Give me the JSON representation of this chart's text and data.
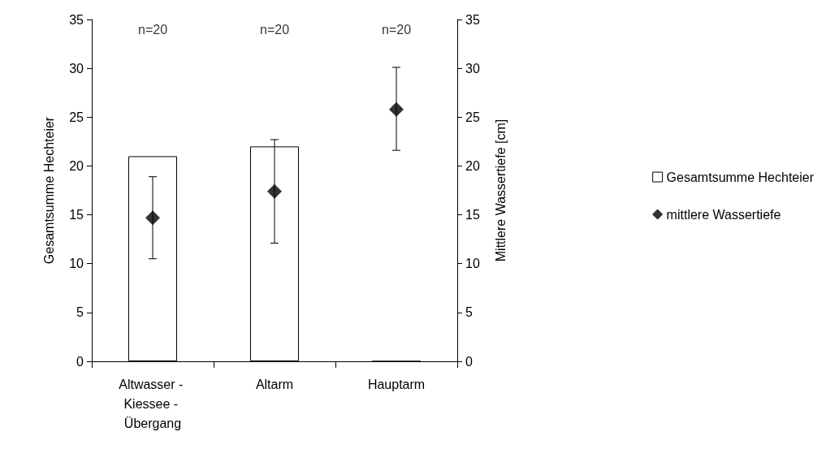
{
  "chart_data": {
    "type": "bar",
    "categories": [
      "Altwasser - Kiessee - Übergang",
      "Altarm",
      "Hauptarm"
    ],
    "ylabel": "Gesamtsumme Hechteier",
    "y2label": "Mittlere Wassertiefe [cm]",
    "ylim": [
      0,
      35
    ],
    "yticks": [
      0,
      5,
      10,
      15,
      20,
      25,
      30,
      35
    ],
    "y2lim": [
      0,
      35
    ],
    "y2ticks": [
      0,
      5,
      10,
      15,
      20,
      25,
      30,
      35
    ],
    "series": [
      {
        "name": "Gesamtsumme Hechteier",
        "color": "#ffffff",
        "values": [
          21,
          22,
          0
        ]
      },
      {
        "name": "mittlere Wassertiefe",
        "type": "scatter",
        "axis": "y2",
        "marker": "diamond",
        "color": "#000000",
        "values": [
          14.7,
          17.4,
          25.8
        ],
        "errors": [
          [
            10.5,
            18.9
          ],
          [
            12.1,
            22.7
          ],
          [
            21.6,
            30.1
          ]
        ]
      }
    ],
    "annotations": [
      "n=20",
      "n=20",
      "n=20"
    ],
    "grid": false,
    "legend": "right"
  }
}
